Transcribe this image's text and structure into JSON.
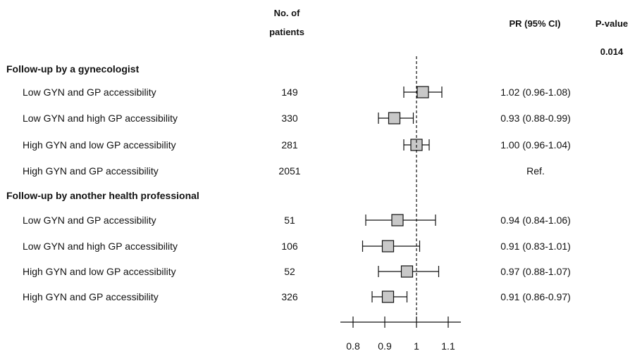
{
  "chart_data": {
    "type": "forest",
    "header": {
      "patients": [
        "No. of",
        "patients"
      ],
      "pr": "PR (95% CI)",
      "pvalue": "P-value",
      "pvalue_value": "0.014"
    },
    "groups": [
      {
        "title": "Follow-up by a gynecologist",
        "rows": [
          {
            "label": "Low GYN and GP accessibility",
            "n": "149",
            "pr": 1.02,
            "lo": 0.96,
            "hi": 1.08,
            "ci_text": "1.02 (0.96-1.08)"
          },
          {
            "label": "Low GYN and high GP accessibility",
            "n": "330",
            "pr": 0.93,
            "lo": 0.88,
            "hi": 0.99,
            "ci_text": "0.93 (0.88-0.99)"
          },
          {
            "label": "High GYN and low GP accessibility",
            "n": "281",
            "pr": 1.0,
            "lo": 0.96,
            "hi": 1.04,
            "ci_text": "1.00 (0.96-1.04)"
          },
          {
            "label": "High GYN and GP accessibility",
            "n": "2051",
            "pr": null,
            "lo": null,
            "hi": null,
            "ci_text": "Ref."
          }
        ]
      },
      {
        "title": "Follow-up by another health professional",
        "rows": [
          {
            "label": "Low GYN and GP accessibility",
            "n": "51",
            "pr": 0.94,
            "lo": 0.84,
            "hi": 1.06,
            "ci_text": "0.94 (0.84-1.06)"
          },
          {
            "label": "Low GYN and high GP accessibility",
            "n": "106",
            "pr": 0.91,
            "lo": 0.83,
            "hi": 1.01,
            "ci_text": "0.91 (0.83-1.01)"
          },
          {
            "label": "High GYN and low GP accessibility",
            "n": "52",
            "pr": 0.97,
            "lo": 0.88,
            "hi": 1.07,
            "ci_text": "0.97 (0.88-1.07)"
          },
          {
            "label": "High GYN and GP accessibility",
            "n": "326",
            "pr": 0.91,
            "lo": 0.86,
            "hi": 0.97,
            "ci_text": "0.91 (0.86-0.97)"
          }
        ]
      }
    ],
    "x_axis": {
      "ticks": [
        0.8,
        0.9,
        1,
        1.1
      ],
      "tick_labels": [
        "0.8",
        "0.9",
        "1",
        "1.1"
      ],
      "range": [
        0.76,
        1.14
      ]
    },
    "reference_line": 1,
    "colors": {
      "box_fill": "#c8c8c8",
      "ink": "#111111"
    }
  }
}
